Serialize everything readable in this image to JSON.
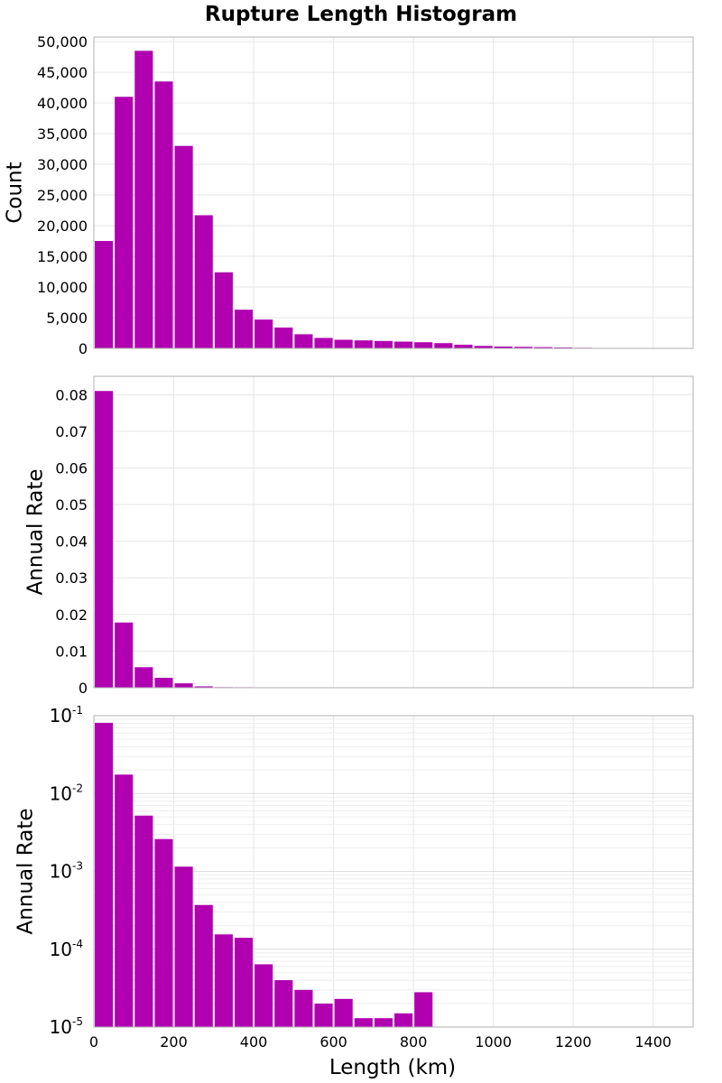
{
  "chart_data": {
    "title": "Rupture Length Histogram",
    "type": "bar",
    "xlabel": "Length (km)",
    "xlim": [
      0,
      1500
    ],
    "xticks": [
      0,
      200,
      400,
      600,
      800,
      1000,
      1200,
      1400
    ],
    "xticklabels": [
      "0",
      "200",
      "400",
      "600",
      "800",
      "1000",
      "1200",
      "1400"
    ],
    "bin_width": 50,
    "bin_centers": [
      25,
      75,
      125,
      175,
      225,
      275,
      325,
      375,
      425,
      475,
      525,
      575,
      625,
      675,
      725,
      775,
      825,
      875,
      925,
      975,
      1025,
      1075,
      1125,
      1175,
      1225,
      1275,
      1325
    ],
    "bar_color": "#b000b0",
    "grid": true,
    "panels": [
      {
        "ylabel": "Count",
        "yscale": "linear",
        "ylim": [
          0,
          50750
        ],
        "yticks": [
          0,
          5000,
          10000,
          15000,
          20000,
          25000,
          30000,
          35000,
          40000,
          45000,
          50000
        ],
        "yticklabels": [
          "0",
          "5,000",
          "10,000",
          "15,000",
          "20,000",
          "25,000",
          "30,000",
          "35,000",
          "40,000",
          "45,000",
          "50,000"
        ],
        "values": [
          17500,
          41000,
          48500,
          43500,
          33000,
          21700,
          12400,
          6300,
          4700,
          3400,
          2300,
          1700,
          1400,
          1300,
          1200,
          1100,
          1000,
          850,
          600,
          400,
          300,
          250,
          200,
          150,
          100,
          50,
          30
        ]
      },
      {
        "ylabel": "Annual Rate",
        "yscale": "linear",
        "ylim": [
          0,
          0.085
        ],
        "yticks": [
          0,
          0.01,
          0.02,
          0.03,
          0.04,
          0.05,
          0.06,
          0.07,
          0.08
        ],
        "yticklabels": [
          "0",
          "0.01",
          "0.02",
          "0.03",
          "0.04",
          "0.05",
          "0.06",
          "0.07",
          "0.08"
        ],
        "values": [
          0.081,
          0.0178,
          0.0056,
          0.0027,
          0.0012,
          0.00037,
          0.00016,
          0.00014,
          6.5e-05,
          4e-05,
          3.1e-05,
          2e-05,
          2.3e-05,
          1.3e-05,
          1.5e-05,
          2.8e-05,
          0,
          0,
          0,
          0,
          0,
          0,
          0,
          0,
          0,
          0,
          0
        ]
      },
      {
        "ylabel": "Annual Rate",
        "yscale": "log",
        "ylim": [
          1e-05,
          0.1
        ],
        "yticks": [
          1e-05,
          0.0001,
          0.001,
          0.01,
          0.1
        ],
        "ytick_base": "10",
        "ytick_exponents": [
          "-5",
          "-4",
          "-3",
          "-2",
          "-1"
        ],
        "values": [
          0.081,
          0.0175,
          0.0052,
          0.0026,
          0.00115,
          0.00037,
          0.000155,
          0.00014,
          6.4e-05,
          4e-05,
          3e-05,
          2e-05,
          2.3e-05,
          1.3e-05,
          1.3e-05,
          1.5e-05,
          2.8e-05,
          0,
          0,
          0,
          0,
          0,
          0,
          0,
          0,
          0,
          0
        ]
      }
    ]
  }
}
